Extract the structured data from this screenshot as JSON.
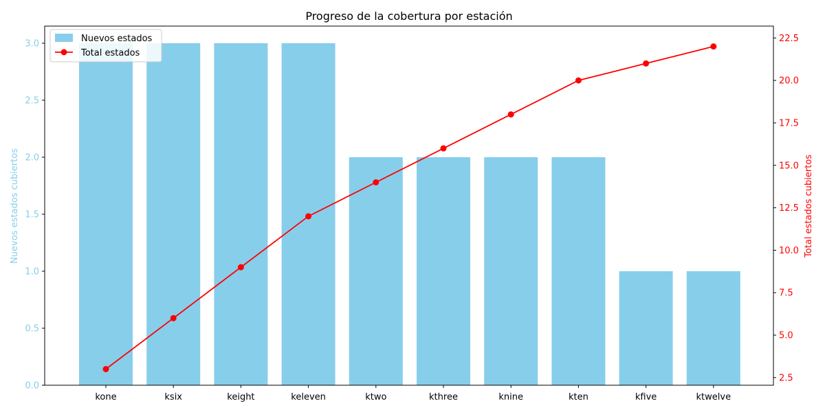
{
  "chart_data": {
    "type": "bar+line",
    "title": "Progreso de la cobertura por estación",
    "categories": [
      "kone",
      "ksix",
      "keight",
      "keleven",
      "ktwo",
      "kthree",
      "knine",
      "kten",
      "kfive",
      "ktwelve"
    ],
    "series": [
      {
        "name": "Nuevos estados",
        "type": "bar",
        "axis": "left",
        "color": "#87CEEB",
        "values": [
          3,
          3,
          3,
          3,
          2,
          2,
          2,
          2,
          1,
          1
        ]
      },
      {
        "name": "Total estados",
        "type": "line",
        "axis": "right",
        "color": "#FF0000",
        "values": [
          3,
          6,
          9,
          12,
          14,
          16,
          18,
          20,
          21,
          22
        ]
      }
    ],
    "y_left": {
      "label": "Nuevos estados cubiertos",
      "color": "#87CEEB",
      "range": [
        0,
        3.15
      ],
      "ticks": [
        "0.0",
        "0.5",
        "1.0",
        "1.5",
        "2.0",
        "2.5",
        "3.0"
      ]
    },
    "y_right": {
      "label": "Total estados cubiertos",
      "color": "#FF0000",
      "range": [
        2.05,
        23.2
      ],
      "ticks": [
        "2.5",
        "5.0",
        "7.5",
        "10.0",
        "12.5",
        "15.0",
        "17.5",
        "20.0",
        "22.5"
      ]
    },
    "grid": false,
    "legend": "top-left"
  }
}
